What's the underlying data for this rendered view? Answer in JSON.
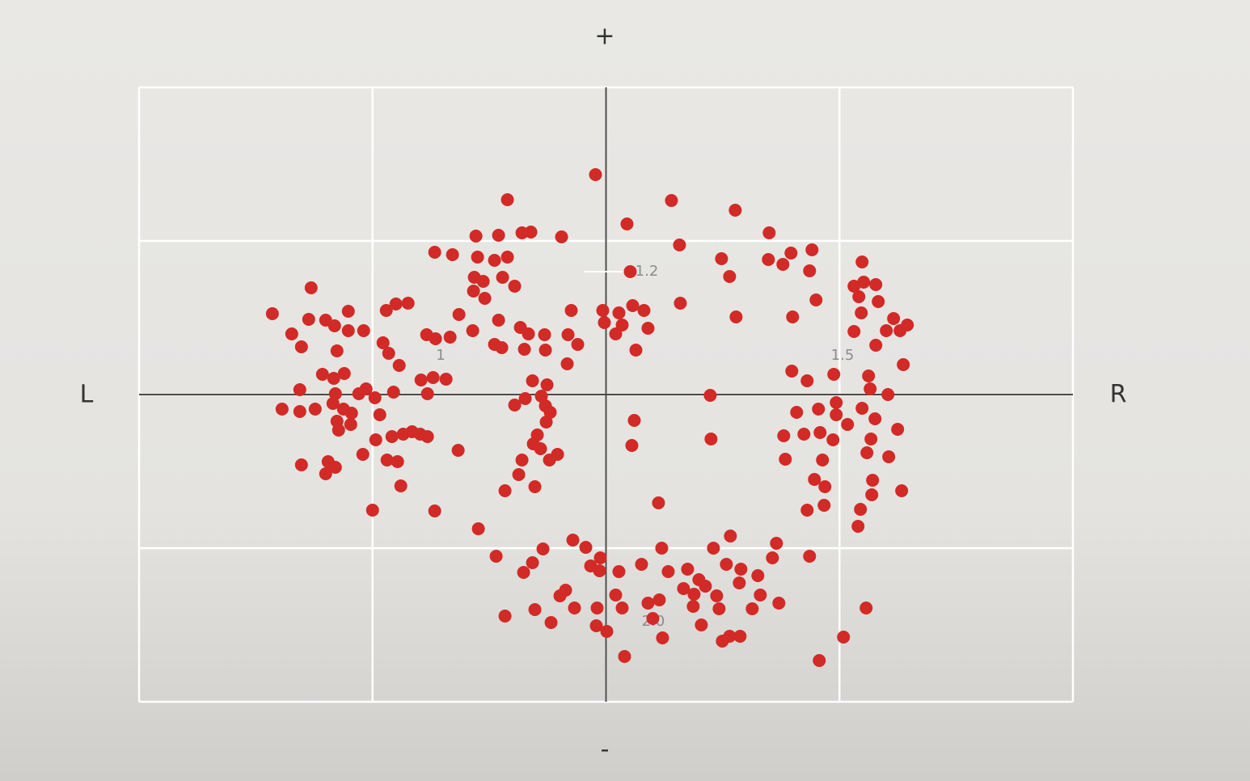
{
  "chart_data": {
    "type": "scatter",
    "axis_labels": {
      "top": "+",
      "bottom": "-",
      "left": "L",
      "right": "R"
    },
    "annotations": [
      "1.2",
      "1",
      "1.5",
      "2.0"
    ],
    "color": "#d22a26",
    "xlim": [
      -578,
      578
    ],
    "xticks": [
      -578,
      -289,
      0,
      289,
      578
    ],
    "ylim": [
      -380,
      380
    ],
    "yticks": [
      -380,
      -190,
      0,
      190,
      380
    ],
    "grid": true,
    "x": [
      -13,
      -122,
      81,
      160,
      26,
      -55,
      -161,
      -133,
      -104,
      -93,
      91,
      202,
      -212,
      -190,
      -159,
      -138,
      -122,
      143,
      201,
      219,
      229,
      255,
      252,
      30,
      -163,
      -152,
      -128,
      -113,
      -164,
      -150,
      153,
      317,
      307,
      319,
      334,
      313,
      337,
      260,
      92,
      -365,
      -413,
      -389,
      -368,
      -347,
      -336,
      -319,
      -319,
      -300,
      -377,
      -333,
      -272,
      -260,
      -245,
      -182,
      -133,
      -43,
      -4,
      16,
      33,
      47,
      -2,
      20,
      12,
      52,
      37,
      161,
      231,
      316,
      356,
      373,
      347,
      364,
      307,
      334,
      368,
      -222,
      -211,
      -193,
      -165,
      -138,
      -129,
      -106,
      -96,
      -76,
      -47,
      -35,
      -101,
      -75,
      -48,
      -276,
      -269,
      -256,
      -351,
      -337,
      -324,
      -229,
      -214,
      -198,
      -91,
      -73,
      230,
      249,
      282,
      325,
      327,
      349,
      -379,
      -335,
      -306,
      -297,
      -286,
      -263,
      -221,
      -113,
      -100,
      -80,
      -75,
      -69,
      129,
      -401,
      -379,
      -360,
      -338,
      -325,
      -315,
      -333,
      -331,
      -316,
      -280,
      -285,
      -265,
      -251,
      -240,
      -230,
      -221,
      -183,
      -74,
      -85,
      -90,
      -81,
      -60,
      -70,
      -104,
      -108,
      -125,
      -88,
      35,
      32,
      130,
      236,
      263,
      285,
      285,
      317,
      333,
      299,
      220,
      245,
      265,
      281,
      328,
      361,
      323,
      222,
      268,
      350,
      330,
      366,
      258,
      271,
      329,
      315,
      249,
      270,
      312,
      -377,
      -344,
      -335,
      -347,
      -301,
      -271,
      -258,
      -254,
      -289,
      -212,
      -158,
      65,
      -136,
      -102,
      -91,
      -78,
      -41,
      -25,
      -19,
      -7,
      -8,
      16,
      44,
      69,
      77,
      101,
      133,
      154,
      149,
      167,
      188,
      165,
      211,
      206,
      252,
      115,
      96,
      109,
      123,
      137,
      140,
      108,
      191,
      214,
      181,
      -57,
      -50,
      -39,
      -88,
      -68,
      -125,
      -11,
      12,
      20,
      52,
      66,
      58,
      -12,
      1,
      70,
      118,
      144,
      153,
      166,
      23,
      264,
      294,
      322
    ],
    "values": [
      272,
      241,
      240,
      228,
      211,
      195,
      196,
      197,
      200,
      201,
      185,
      200,
      176,
      173,
      170,
      166,
      170,
      168,
      167,
      161,
      175,
      179,
      153,
      152,
      145,
      140,
      145,
      134,
      128,
      119,
      146,
      164,
      134,
      139,
      136,
      121,
      115,
      117,
      113,
      132,
      100,
      75,
      93,
      92,
      85,
      103,
      79,
      79,
      59,
      54,
      104,
      112,
      113,
      99,
      92,
      104,
      104,
      101,
      110,
      104,
      89,
      86,
      75,
      82,
      55,
      96,
      96,
      101,
      94,
      86,
      79,
      79,
      78,
      61,
      37,
      74,
      69,
      71,
      79,
      62,
      58,
      83,
      75,
      74,
      74,
      62,
      56,
      55,
      38,
      64,
      51,
      36,
      25,
      20,
      26,
      18,
      21,
      19,
      17,
      12,
      29,
      17,
      25,
      23,
      7,
      0,
      6,
      1,
      1,
      7,
      -4,
      3,
      1,
      -13,
      -5,
      -2,
      -14,
      -22,
      -1,
      -18,
      -21,
      -18,
      -11,
      -18,
      -23,
      -33,
      -44,
      -37,
      -25,
      -56,
      -52,
      -49,
      -46,
      -49,
      -52,
      -69,
      -34,
      -50,
      -61,
      -67,
      -74,
      -81,
      -81,
      -99,
      -119,
      -114,
      -32,
      -63,
      -55,
      -22,
      -18,
      -10,
      -25,
      -17,
      -30,
      -37,
      -51,
      -49,
      -47,
      -56,
      -55,
      -43,
      -72,
      -80,
      -81,
      -77,
      -106,
      -119,
      -105,
      -114,
      -124,
      -142,
      -143,
      -137,
      -163,
      -87,
      -83,
      -90,
      -98,
      -74,
      -81,
      -83,
      -113,
      -143,
      -144,
      -166,
      -134,
      -200,
      -220,
      -208,
      -191,
      -180,
      -189,
      -212,
      -202,
      -218,
      -219,
      -210,
      -190,
      -219,
      -216,
      -190,
      -175,
      -210,
      -216,
      -224,
      -233,
      -184,
      -202,
      -200,
      -229,
      -240,
      -247,
      -237,
      -249,
      -265,
      -262,
      -248,
      -258,
      -265,
      -249,
      -242,
      -264,
      -266,
      -282,
      -274,
      -264,
      -248,
      -264,
      -258,
      -254,
      -277,
      -286,
      -293,
      -301,
      -285,
      -305,
      -299,
      -299,
      -324,
      -329,
      -300,
      -264
    ]
  }
}
